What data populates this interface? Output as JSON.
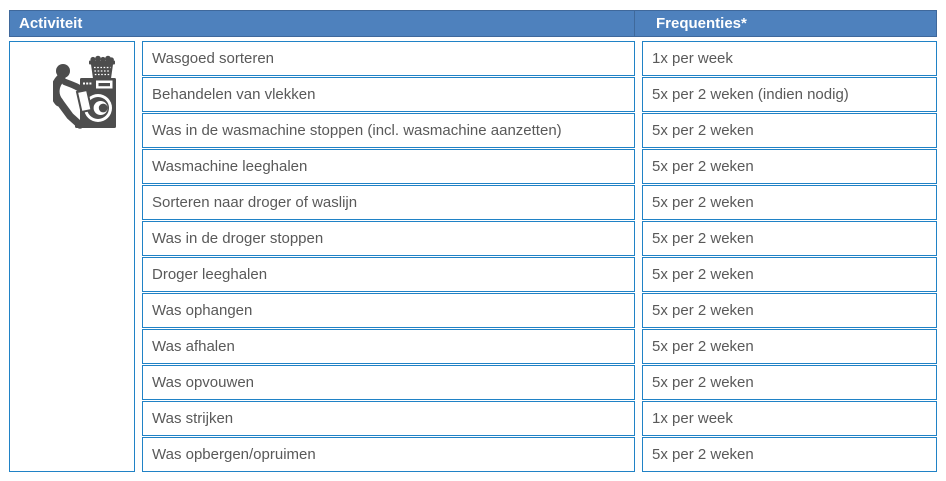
{
  "header": {
    "activity_label": "Activiteit",
    "frequency_label": "Frequenties*"
  },
  "icon": {
    "name": "laundry-washing-machine-icon"
  },
  "rows": [
    {
      "activity": "Wasgoed sorteren",
      "frequency": "1x per week"
    },
    {
      "activity": "Behandelen van vlekken",
      "frequency": "5x per 2 weken (indien nodig)"
    },
    {
      "activity": "Was in de wasmachine stoppen (incl. wasmachine aanzetten)",
      "frequency": "5x per 2 weken"
    },
    {
      "activity": "Wasmachine leeghalen",
      "frequency": "5x per 2 weken"
    },
    {
      "activity": "Sorteren naar droger of waslijn",
      "frequency": "5x per 2 weken"
    },
    {
      "activity": "Was in de droger stoppen",
      "frequency": "5x per 2 weken"
    },
    {
      "activity": "Droger leeghalen",
      "frequency": "5x per 2 weken"
    },
    {
      "activity": "Was ophangen",
      "frequency": "5x per 2 weken"
    },
    {
      "activity": "Was afhalen",
      "frequency": "5x per 2 weken"
    },
    {
      "activity": "Was opvouwen",
      "frequency": "5x per 2 weken"
    },
    {
      "activity": "Was strijken",
      "frequency": "1x per week"
    },
    {
      "activity": "Was opbergen/opruimen",
      "frequency": "5x per 2 weken"
    }
  ],
  "colors": {
    "header_bg": "#4e81bd",
    "header_text": "#ffffff",
    "cell_border": "#2082c6",
    "cell_text": "#595959",
    "icon_color": "#4d4d4d",
    "page_bg": "#ffffff"
  }
}
